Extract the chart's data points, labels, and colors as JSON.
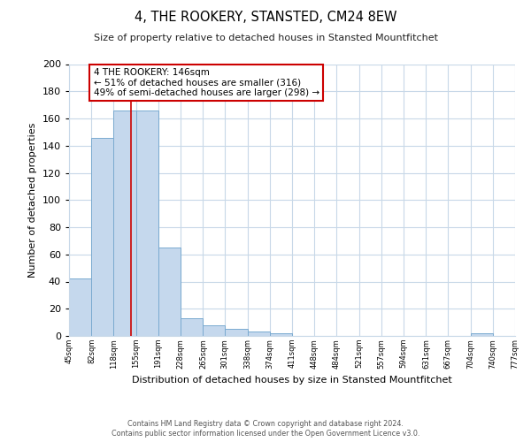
{
  "title": "4, THE ROOKERY, STANSTED, CM24 8EW",
  "subtitle": "Size of property relative to detached houses in Stansted Mountfitchet",
  "xlabel": "Distribution of detached houses by size in Stansted Mountfitchet",
  "ylabel": "Number of detached properties",
  "bar_edges": [
    45,
    82,
    118,
    155,
    191,
    228,
    265,
    301,
    338,
    374,
    411,
    448,
    484,
    521,
    557,
    594,
    631,
    667,
    704,
    740,
    777
  ],
  "bar_heights": [
    42,
    146,
    166,
    166,
    65,
    13,
    8,
    5,
    3,
    2,
    0,
    0,
    0,
    0,
    0,
    0,
    0,
    0,
    2,
    0
  ],
  "bar_color": "#c5d8ed",
  "bar_edgecolor": "#7aaad0",
  "property_line_x": 146,
  "property_line_color": "#cc0000",
  "annotation_text": "4 THE ROOKERY: 146sqm\n← 51% of detached houses are smaller (316)\n49% of semi-detached houses are larger (298) →",
  "annotation_box_color": "#ffffff",
  "annotation_box_edgecolor": "#cc0000",
  "ylim": [
    0,
    200
  ],
  "yticks": [
    0,
    20,
    40,
    60,
    80,
    100,
    120,
    140,
    160,
    180,
    200
  ],
  "tick_labels": [
    "45sqm",
    "82sqm",
    "118sqm",
    "155sqm",
    "191sqm",
    "228sqm",
    "265sqm",
    "301sqm",
    "338sqm",
    "374sqm",
    "411sqm",
    "448sqm",
    "484sqm",
    "521sqm",
    "557sqm",
    "594sqm",
    "631sqm",
    "667sqm",
    "704sqm",
    "740sqm",
    "777sqm"
  ],
  "footnote1": "Contains HM Land Registry data © Crown copyright and database right 2024.",
  "footnote2": "Contains public sector information licensed under the Open Government Licence v3.0.",
  "bg_color": "#ffffff",
  "grid_color": "#c8d8e8"
}
